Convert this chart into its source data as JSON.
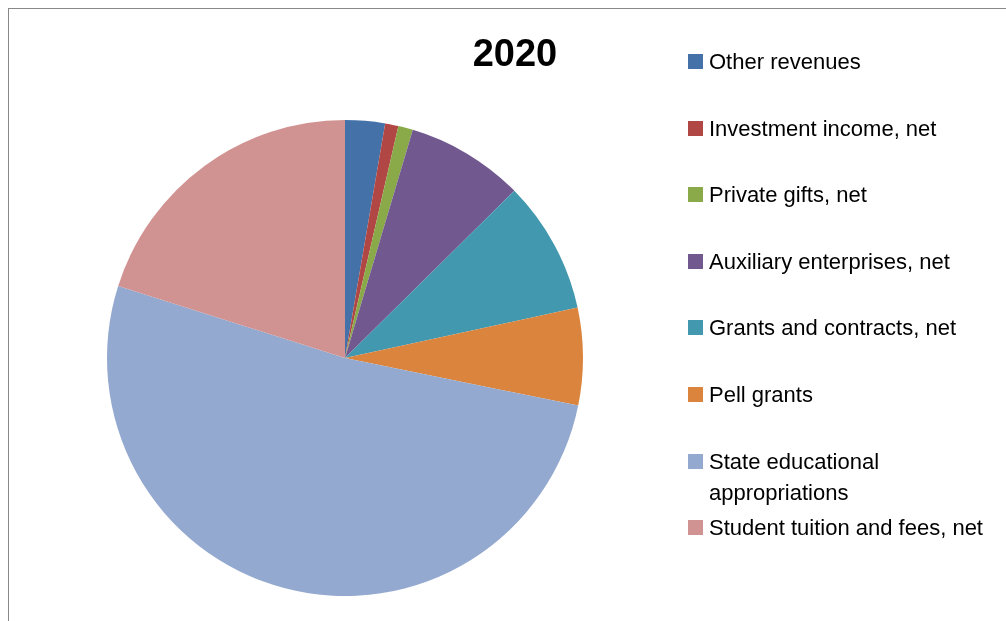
{
  "chart_data": {
    "type": "pie",
    "title": "2020",
    "categories": [
      "Other revenues",
      "Investment income, net",
      "Private gifts, net",
      "Auxiliary enterprises, net",
      "Grants and contracts, net",
      "Pell grants",
      "State educational appropriations",
      "Student tuition and fees, net"
    ],
    "values": [
      2.7,
      0.9,
      1.0,
      8.0,
      9.0,
      6.6,
      51.7,
      20.1
    ],
    "colors": [
      "#4472a8",
      "#b04744",
      "#8aaa4a",
      "#71588f",
      "#4298af",
      "#db843d",
      "#93a9cf",
      "#d19392"
    ],
    "legend": "right"
  }
}
